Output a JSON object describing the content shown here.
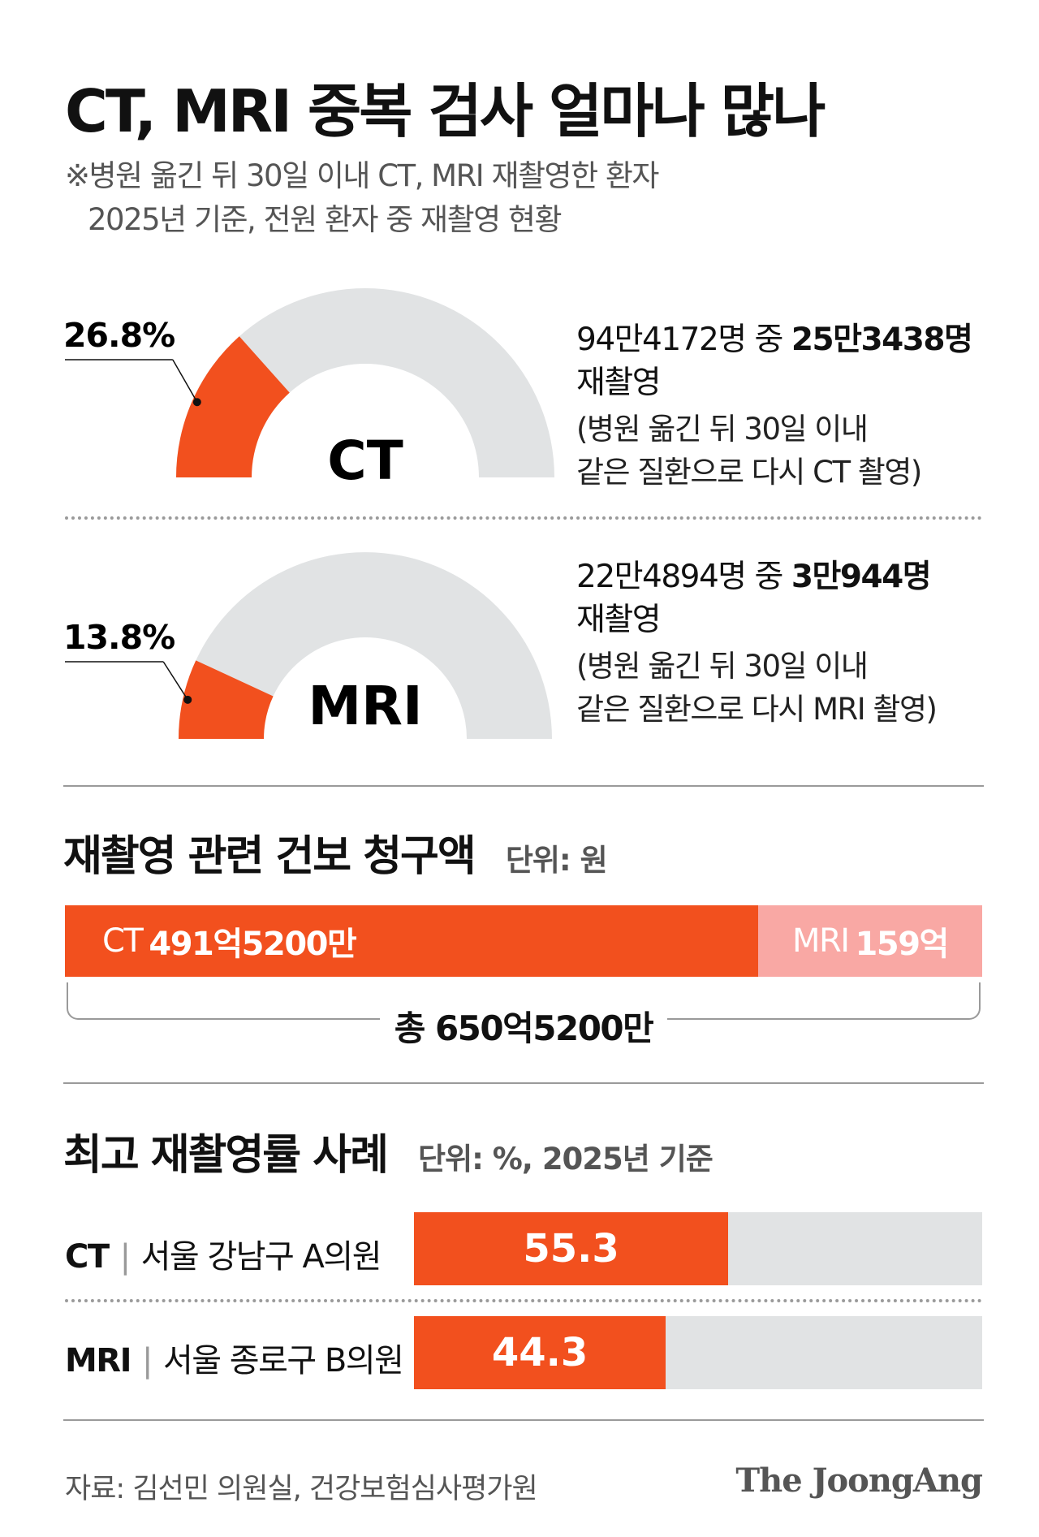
{
  "title": "CT, MRI 중복 검사 얼마나 많나",
  "subtitle": {
    "line1": "※병원 옮긴 뒤 30일 이내 CT, MRI 재촬영한 환자",
    "line2": "2025년 기준, 전원 환자 중 재촬영 현황"
  },
  "colors": {
    "accent": "#f2501e",
    "accent_light": "#f9a8a4",
    "track": "#e1e3e4",
    "rule": "#9a9a9a"
  },
  "chart_data": [
    {
      "type": "gauge",
      "label": "CT",
      "value": 26.8,
      "value_label": "26.8%",
      "max": 100,
      "desc_line1_plain": "94만4172명 중 ",
      "desc_line1_bold": "25만3438명",
      "desc_line2": "재촬영",
      "note_line1": "(병원 옮긴 뒤 30일 이내",
      "note_line2": "같은 질환으로 다시 CT 촬영)"
    },
    {
      "type": "gauge",
      "label": "MRI",
      "value": 13.8,
      "value_label": "13.8%",
      "max": 100,
      "desc_line1_plain": "22만4894명 중 ",
      "desc_line1_bold": "3만944명",
      "desc_line2": "재촬영",
      "note_line1": "(병원 옮긴 뒤 30일 이내",
      "note_line2": "같은 질환으로 다시 MRI 촬영)"
    },
    {
      "type": "bar",
      "title": "재촬영 관련 건보 청구액",
      "unit": "단위: 원",
      "stacked": true,
      "series": [
        {
          "name": "CT",
          "value": 491.52,
          "value_label": "491억5200만"
        },
        {
          "name": "MRI",
          "value": 159,
          "value_label": "159억"
        }
      ],
      "total_label": "총 650억5200만"
    },
    {
      "type": "bar",
      "title": "최고 재촬영률 사례",
      "unit": "단위: %, 2025년 기준",
      "xlim": [
        0,
        100
      ],
      "categories": [
        {
          "modality": "CT",
          "place": "서울 강남구 A의원",
          "value": 55.3,
          "value_label": "55.3"
        },
        {
          "modality": "MRI",
          "place": "서울 종로구 B의원",
          "value": 44.3,
          "value_label": "44.3"
        }
      ]
    }
  ],
  "footer": {
    "source": "자료: 김선민 의원실, 건강보험심사평가원",
    "brand": "The JoongAng"
  }
}
